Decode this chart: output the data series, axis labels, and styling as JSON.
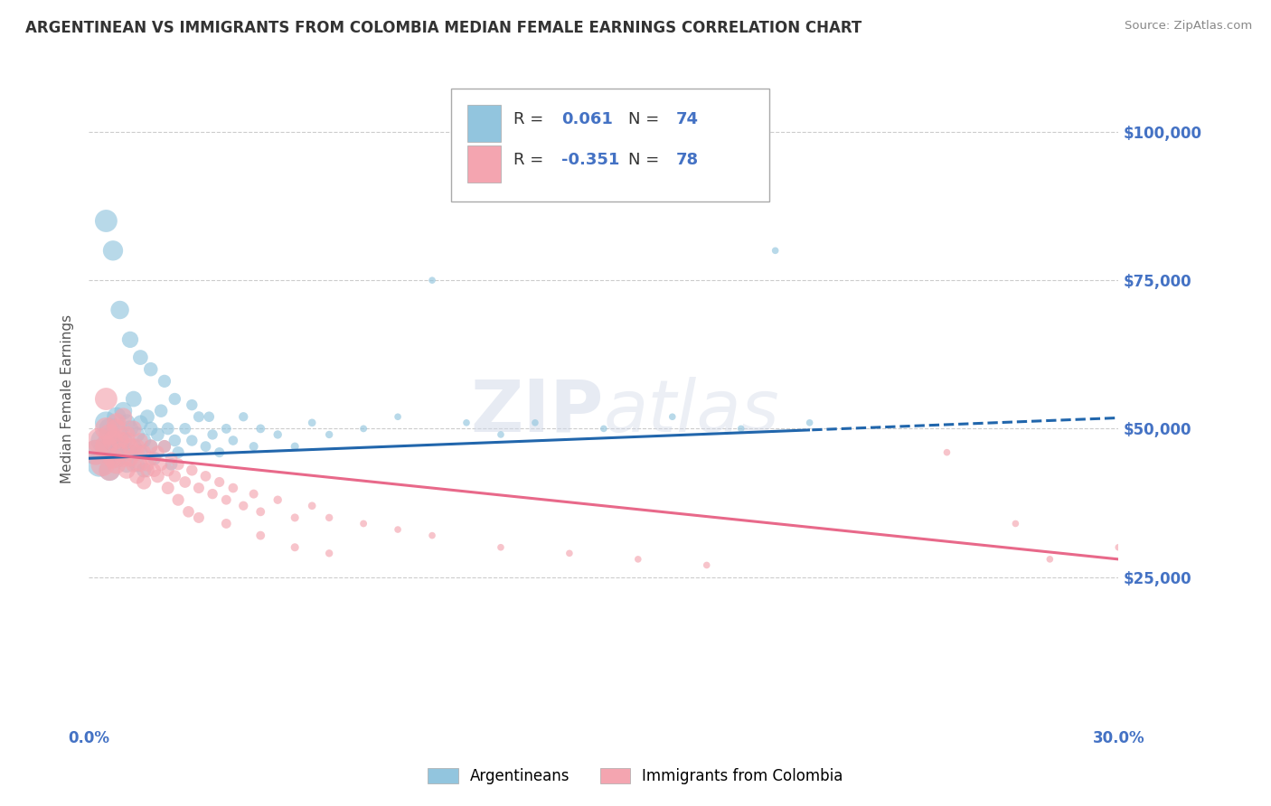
{
  "title": "ARGENTINEAN VS IMMIGRANTS FROM COLOMBIA MEDIAN FEMALE EARNINGS CORRELATION CHART",
  "source": "Source: ZipAtlas.com",
  "ylabel": "Median Female Earnings",
  "y_ticks": [
    25000,
    50000,
    75000,
    100000
  ],
  "y_tick_labels": [
    "$25,000",
    "$50,000",
    "$75,000",
    "$100,000"
  ],
  "y_lim": [
    0,
    110000
  ],
  "x_lim": [
    0.0,
    0.3
  ],
  "blue_R": 0.061,
  "blue_N": 74,
  "pink_R": -0.351,
  "pink_N": 78,
  "blue_color": "#92c5de",
  "pink_color": "#f4a5b0",
  "blue_line_color": "#2166ac",
  "pink_line_color": "#e8698a",
  "blue_label": "Argentineans",
  "pink_label": "Immigrants from Colombia",
  "background_color": "#ffffff",
  "grid_color": "#cccccc",
  "title_color": "#333333",
  "axis_label_color": "#4472c4",
  "blue_scatter_x": [
    0.002,
    0.003,
    0.004,
    0.005,
    0.005,
    0.006,
    0.006,
    0.007,
    0.007,
    0.008,
    0.008,
    0.009,
    0.009,
    0.01,
    0.01,
    0.011,
    0.011,
    0.012,
    0.012,
    0.013,
    0.013,
    0.014,
    0.014,
    0.015,
    0.015,
    0.016,
    0.016,
    0.017,
    0.018,
    0.018,
    0.019,
    0.02,
    0.021,
    0.022,
    0.023,
    0.024,
    0.025,
    0.026,
    0.028,
    0.03,
    0.032,
    0.034,
    0.036,
    0.038,
    0.04,
    0.042,
    0.045,
    0.048,
    0.05,
    0.055,
    0.06,
    0.065,
    0.07,
    0.08,
    0.09,
    0.1,
    0.11,
    0.12,
    0.13,
    0.15,
    0.17,
    0.19,
    0.21,
    0.005,
    0.007,
    0.009,
    0.012,
    0.015,
    0.018,
    0.022,
    0.025,
    0.03,
    0.035,
    0.2
  ],
  "blue_scatter_y": [
    46000,
    44000,
    48000,
    47000,
    51000,
    43000,
    50000,
    46000,
    48000,
    45000,
    52000,
    47000,
    49000,
    48000,
    53000,
    44000,
    51000,
    46000,
    50000,
    47000,
    55000,
    44000,
    49000,
    46000,
    51000,
    43000,
    48000,
    52000,
    47000,
    50000,
    45000,
    49000,
    53000,
    47000,
    50000,
    44000,
    48000,
    46000,
    50000,
    48000,
    52000,
    47000,
    49000,
    46000,
    50000,
    48000,
    52000,
    47000,
    50000,
    49000,
    47000,
    51000,
    49000,
    50000,
    52000,
    75000,
    51000,
    49000,
    51000,
    50000,
    52000,
    50000,
    51000,
    85000,
    80000,
    70000,
    65000,
    62000,
    60000,
    58000,
    55000,
    54000,
    52000,
    80000
  ],
  "pink_scatter_x": [
    0.002,
    0.003,
    0.004,
    0.005,
    0.005,
    0.006,
    0.006,
    0.007,
    0.007,
    0.008,
    0.008,
    0.009,
    0.009,
    0.01,
    0.01,
    0.011,
    0.011,
    0.012,
    0.012,
    0.013,
    0.013,
    0.014,
    0.014,
    0.015,
    0.015,
    0.016,
    0.016,
    0.017,
    0.018,
    0.018,
    0.019,
    0.02,
    0.021,
    0.022,
    0.023,
    0.024,
    0.025,
    0.026,
    0.028,
    0.03,
    0.032,
    0.034,
    0.036,
    0.038,
    0.04,
    0.042,
    0.045,
    0.048,
    0.05,
    0.055,
    0.06,
    0.065,
    0.07,
    0.08,
    0.09,
    0.1,
    0.12,
    0.14,
    0.16,
    0.18,
    0.005,
    0.008,
    0.011,
    0.014,
    0.017,
    0.02,
    0.023,
    0.026,
    0.029,
    0.032,
    0.04,
    0.05,
    0.06,
    0.07,
    0.25,
    0.27,
    0.28,
    0.3
  ],
  "pink_scatter_y": [
    46000,
    48000,
    44000,
    47000,
    50000,
    43000,
    49000,
    45000,
    48000,
    44000,
    51000,
    46000,
    48000,
    45000,
    52000,
    43000,
    49000,
    45000,
    47000,
    44000,
    50000,
    42000,
    47000,
    44000,
    48000,
    41000,
    46000,
    43000,
    47000,
    45000,
    43000,
    46000,
    44000,
    47000,
    43000,
    45000,
    42000,
    44000,
    41000,
    43000,
    40000,
    42000,
    39000,
    41000,
    38000,
    40000,
    37000,
    39000,
    36000,
    38000,
    35000,
    37000,
    35000,
    34000,
    33000,
    32000,
    30000,
    29000,
    28000,
    27000,
    55000,
    50000,
    48000,
    46000,
    44000,
    42000,
    40000,
    38000,
    36000,
    35000,
    34000,
    32000,
    30000,
    29000,
    46000,
    34000,
    28000,
    30000
  ]
}
